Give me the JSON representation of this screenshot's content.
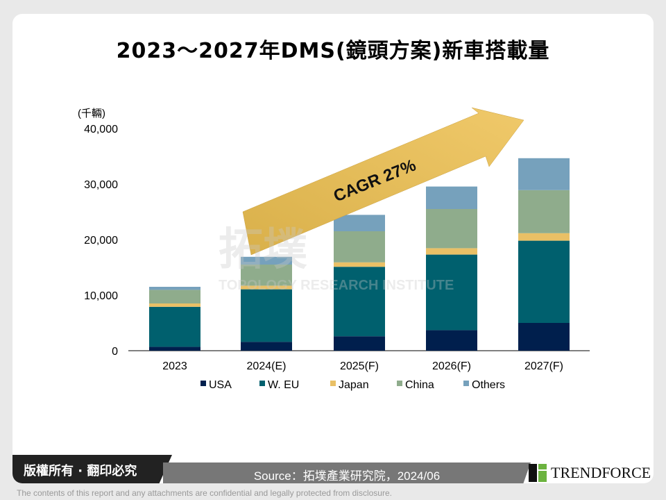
{
  "title": "2023～2027年DMS(鏡頭方案)新車搭載量",
  "chart_data": {
    "type": "bar",
    "stacked": true,
    "title": "2023～2027年DMS(鏡頭方案)新車搭載量",
    "ylabel": "(千輛)",
    "ylim": [
      0,
      40000
    ],
    "yticks": [
      "0",
      "10,000",
      "20,000",
      "30,000",
      "40,000"
    ],
    "categories": [
      "2023",
      "2024(E)",
      "2025(F)",
      "2026(F)",
      "2027(F)"
    ],
    "series": [
      {
        "name": "USA",
        "color": "#001f4d",
        "values": [
          700,
          1600,
          2600,
          3700,
          5000
        ]
      },
      {
        "name": "W. EU",
        "color": "#00606e",
        "values": [
          7200,
          9450,
          12500,
          13600,
          14800
        ]
      },
      {
        "name": "Japan",
        "color": "#e9c066",
        "values": [
          600,
          650,
          800,
          1150,
          1350
        ]
      },
      {
        "name": "China",
        "color": "#8fac8c",
        "values": [
          2450,
          3800,
          5600,
          7050,
          7750
        ]
      },
      {
        "name": "Others",
        "color": "#76a1bc",
        "values": [
          550,
          1400,
          2950,
          4050,
          5750
        ]
      }
    ],
    "legend": "bottom",
    "annotation": "CAGR 27%",
    "grid": false
  },
  "watermark": {
    "cn": "拓墣",
    "en": "TOPOLOGY RESEARCH INSTITUTE"
  },
  "footer": {
    "copyright": "版權所有 · 翻印必究",
    "source": "Source：拓墣產業研究院，2024/06",
    "brand": "TRENDFORCE",
    "disclaimer": "The contents of this report and any attachments are confidential and legally protected from disclosure."
  }
}
